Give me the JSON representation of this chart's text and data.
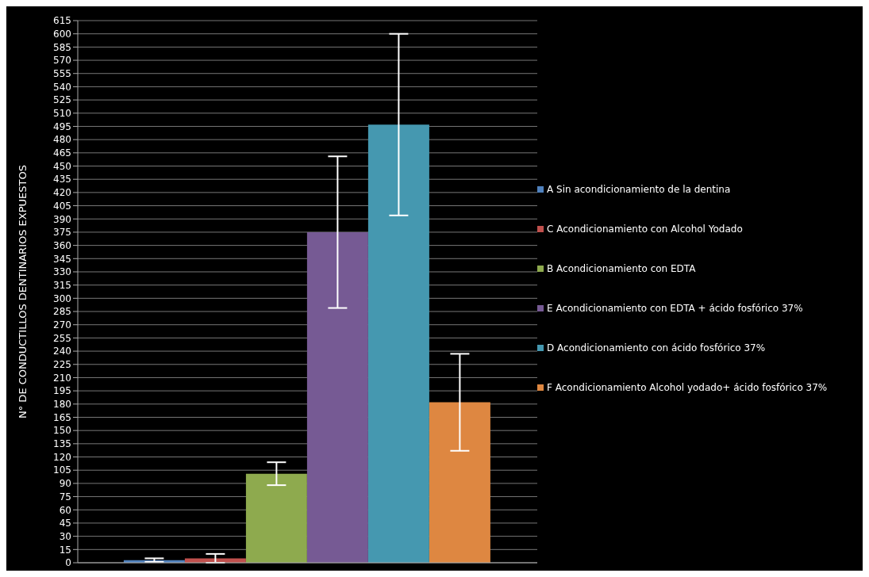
{
  "chart_data": {
    "type": "bar",
    "ylabel": "N° DE CONDUCTILLOS DENTINARIOS  EXPUESTOS",
    "categories": [
      null
    ],
    "series": [
      {
        "name": "A Sin acondicionamiento de la dentina",
        "color": "#4f81bd",
        "values": [
          3
        ],
        "errors": [
          2
        ]
      },
      {
        "name": "C Acondicionamiento con Alcohol Yodado",
        "color": "#c0504d",
        "values": [
          5
        ],
        "errors": [
          5
        ]
      },
      {
        "name": "B Acondicionamiento con EDTA",
        "color": "#8eaa4e",
        "values": [
          101
        ],
        "errors": [
          13
        ]
      },
      {
        "name": "E Acondicionamiento con EDTA + ácido fosfórico 37%",
        "color": "#765a94",
        "values": [
          375
        ],
        "errors": [
          86
        ]
      },
      {
        "name": "D Acondicionamiento con ácido fosfórico 37%",
        "color": "#4598b0",
        "values": [
          497
        ],
        "errors": [
          103
        ]
      },
      {
        "name": "F Acondicionamiento Alcohol yodado+ ácido fosfórico 37%",
        "color": "#de8741",
        "values": [
          182
        ],
        "errors": [
          55
        ]
      }
    ],
    "ylim": [
      0,
      615
    ],
    "yticks": [
      0,
      15,
      30,
      45,
      60,
      75,
      90,
      105,
      120,
      135,
      150,
      165,
      180,
      195,
      210,
      225,
      240,
      255,
      270,
      285,
      300,
      315,
      330,
      345,
      360,
      375,
      390,
      405,
      420,
      435,
      450,
      465,
      480,
      495,
      510,
      525,
      540,
      555,
      570,
      585,
      600,
      615
    ],
    "grid": "y",
    "legend": "right"
  }
}
